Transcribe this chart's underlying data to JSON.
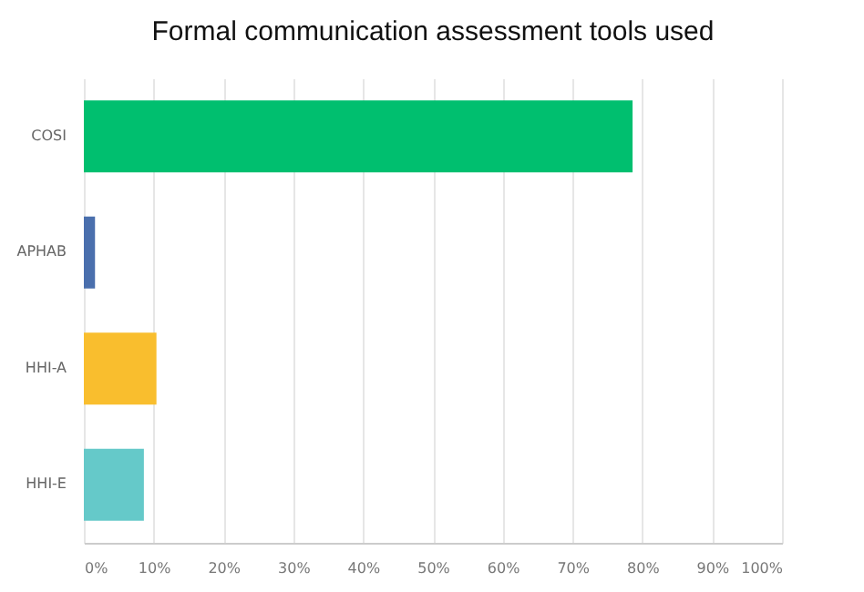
{
  "chart_data": {
    "type": "bar",
    "orientation": "horizontal",
    "title": "Formal communication assessment tools used",
    "categories": [
      "COSI",
      "APHAB",
      "HHI-A",
      "HHI-E"
    ],
    "values": [
      78.6,
      1.6,
      10.4,
      8.6
    ],
    "colors": [
      "#00bf6f",
      "#4a6fad",
      "#f9be2e",
      "#65c9c9"
    ],
    "xlim": [
      0,
      100
    ],
    "xticks": [
      {
        "value": 0,
        "label": "0%"
      },
      {
        "value": 10,
        "label": "10%"
      },
      {
        "value": 20,
        "label": "20%"
      },
      {
        "value": 30,
        "label": "30%"
      },
      {
        "value": 40,
        "label": "40%"
      },
      {
        "value": 50,
        "label": "50%"
      },
      {
        "value": 60,
        "label": "60%"
      },
      {
        "value": 70,
        "label": "70%"
      },
      {
        "value": 80,
        "label": "80%"
      },
      {
        "value": 90,
        "label": "90%"
      },
      {
        "value": 100,
        "label": "100%"
      }
    ],
    "grid": "x"
  }
}
